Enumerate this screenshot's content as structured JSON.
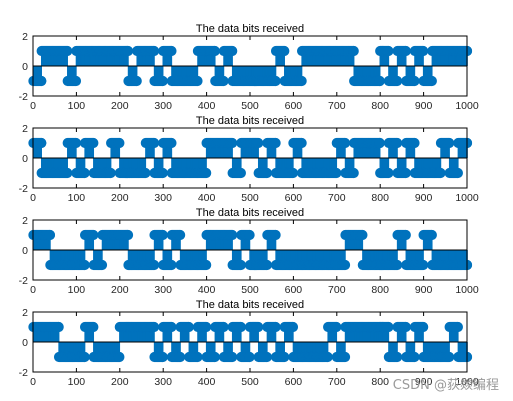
{
  "watermark": "CSDN @荻燚编程",
  "style": {
    "stem_color": "#0072BD",
    "axis_color": "#000000",
    "background": "#ffffff"
  },
  "chart_data": [
    {
      "type": "stem",
      "title": "The data bits received",
      "xlim": [
        0,
        1000
      ],
      "ylim": [
        -2,
        2
      ],
      "xticks": [
        0,
        100,
        200,
        300,
        400,
        500,
        600,
        700,
        800,
        900,
        1000
      ],
      "yticks": [
        -2,
        0,
        2
      ],
      "segments": [
        {
          "x": [
            1,
            19
          ],
          "y": -1
        },
        {
          "x": [
            20,
            79
          ],
          "y": 1
        },
        {
          "x": [
            80,
            99
          ],
          "y": -1
        },
        {
          "x": [
            100,
            219
          ],
          "y": 1
        },
        {
          "x": [
            220,
            239
          ],
          "y": -1
        },
        {
          "x": [
            240,
            279
          ],
          "y": 1
        },
        {
          "x": [
            280,
            299
          ],
          "y": -1
        },
        {
          "x": [
            300,
            319
          ],
          "y": 1
        },
        {
          "x": [
            320,
            379
          ],
          "y": -1
        },
        {
          "x": [
            380,
            419
          ],
          "y": 1
        },
        {
          "x": [
            420,
            439
          ],
          "y": -1
        },
        {
          "x": [
            440,
            459
          ],
          "y": 1
        },
        {
          "x": [
            460,
            559
          ],
          "y": -1
        },
        {
          "x": [
            560,
            579
          ],
          "y": 1
        },
        {
          "x": [
            580,
            619
          ],
          "y": -1
        },
        {
          "x": [
            620,
            739
          ],
          "y": 1
        },
        {
          "x": [
            740,
            799
          ],
          "y": -1
        },
        {
          "x": [
            800,
            819
          ],
          "y": 1
        },
        {
          "x": [
            820,
            839
          ],
          "y": -1
        },
        {
          "x": [
            840,
            859
          ],
          "y": 1
        },
        {
          "x": [
            860,
            879
          ],
          "y": -1
        },
        {
          "x": [
            880,
            899
          ],
          "y": 1
        },
        {
          "x": [
            900,
            919
          ],
          "y": -1
        },
        {
          "x": [
            920,
            1000
          ],
          "y": 1
        }
      ]
    },
    {
      "type": "stem",
      "title": "The data bits received",
      "xlim": [
        0,
        1000
      ],
      "ylim": [
        -2,
        2
      ],
      "xticks": [
        0,
        100,
        200,
        300,
        400,
        500,
        600,
        700,
        800,
        900,
        1000
      ],
      "yticks": [
        -2,
        0,
        2
      ],
      "segments": [
        {
          "x": [
            1,
            19
          ],
          "y": 1
        },
        {
          "x": [
            20,
            79
          ],
          "y": -1
        },
        {
          "x": [
            80,
            99
          ],
          "y": 1
        },
        {
          "x": [
            100,
            119
          ],
          "y": -1
        },
        {
          "x": [
            120,
            139
          ],
          "y": 1
        },
        {
          "x": [
            140,
            179
          ],
          "y": -1
        },
        {
          "x": [
            180,
            199
          ],
          "y": 1
        },
        {
          "x": [
            200,
            259
          ],
          "y": -1
        },
        {
          "x": [
            260,
            279
          ],
          "y": 1
        },
        {
          "x": [
            280,
            299
          ],
          "y": -1
        },
        {
          "x": [
            300,
            319
          ],
          "y": 1
        },
        {
          "x": [
            320,
            399
          ],
          "y": -1
        },
        {
          "x": [
            400,
            459
          ],
          "y": 1
        },
        {
          "x": [
            460,
            479
          ],
          "y": -1
        },
        {
          "x": [
            480,
            519
          ],
          "y": 1
        },
        {
          "x": [
            520,
            539
          ],
          "y": -1
        },
        {
          "x": [
            540,
            559
          ],
          "y": 1
        },
        {
          "x": [
            560,
            599
          ],
          "y": -1
        },
        {
          "x": [
            600,
            619
          ],
          "y": 1
        },
        {
          "x": [
            620,
            699
          ],
          "y": -1
        },
        {
          "x": [
            700,
            719
          ],
          "y": 1
        },
        {
          "x": [
            720,
            739
          ],
          "y": -1
        },
        {
          "x": [
            740,
            799
          ],
          "y": 1
        },
        {
          "x": [
            800,
            819
          ],
          "y": -1
        },
        {
          "x": [
            820,
            839
          ],
          "y": 1
        },
        {
          "x": [
            840,
            859
          ],
          "y": -1
        },
        {
          "x": [
            860,
            879
          ],
          "y": 1
        },
        {
          "x": [
            880,
            939
          ],
          "y": -1
        },
        {
          "x": [
            940,
            959
          ],
          "y": 1
        },
        {
          "x": [
            960,
            979
          ],
          "y": -1
        },
        {
          "x": [
            980,
            1000
          ],
          "y": 1
        }
      ]
    },
    {
      "type": "stem",
      "title": "The data bits received",
      "xlim": [
        0,
        1000
      ],
      "ylim": [
        -2,
        2
      ],
      "xticks": [
        0,
        100,
        200,
        300,
        400,
        500,
        600,
        700,
        800,
        900,
        1000
      ],
      "yticks": [
        -2,
        0,
        2
      ],
      "segments": [
        {
          "x": [
            1,
            39
          ],
          "y": 1
        },
        {
          "x": [
            40,
            119
          ],
          "y": -1
        },
        {
          "x": [
            120,
            139
          ],
          "y": 1
        },
        {
          "x": [
            140,
            159
          ],
          "y": -1
        },
        {
          "x": [
            160,
            219
          ],
          "y": 1
        },
        {
          "x": [
            220,
            279
          ],
          "y": -1
        },
        {
          "x": [
            280,
            299
          ],
          "y": 1
        },
        {
          "x": [
            300,
            319
          ],
          "y": -1
        },
        {
          "x": [
            320,
            339
          ],
          "y": 1
        },
        {
          "x": [
            340,
            399
          ],
          "y": -1
        },
        {
          "x": [
            400,
            459
          ],
          "y": 1
        },
        {
          "x": [
            460,
            479
          ],
          "y": -1
        },
        {
          "x": [
            480,
            499
          ],
          "y": 1
        },
        {
          "x": [
            500,
            539
          ],
          "y": -1
        },
        {
          "x": [
            540,
            559
          ],
          "y": 1
        },
        {
          "x": [
            560,
            719
          ],
          "y": -1
        },
        {
          "x": [
            720,
            759
          ],
          "y": 1
        },
        {
          "x": [
            760,
            839
          ],
          "y": -1
        },
        {
          "x": [
            840,
            859
          ],
          "y": 1
        },
        {
          "x": [
            860,
            899
          ],
          "y": -1
        },
        {
          "x": [
            900,
            919
          ],
          "y": 1
        },
        {
          "x": [
            920,
            1000
          ],
          "y": -1
        }
      ]
    },
    {
      "type": "stem",
      "title": "The data bits received",
      "xlim": [
        0,
        1000
      ],
      "ylim": [
        -2,
        2
      ],
      "xticks": [
        0,
        100,
        200,
        300,
        400,
        500,
        600,
        700,
        800,
        900,
        1000
      ],
      "yticks": [
        -2,
        0,
        2
      ],
      "segments": [
        {
          "x": [
            1,
            59
          ],
          "y": 1
        },
        {
          "x": [
            60,
            119
          ],
          "y": -1
        },
        {
          "x": [
            120,
            139
          ],
          "y": 1
        },
        {
          "x": [
            140,
            199
          ],
          "y": -1
        },
        {
          "x": [
            200,
            279
          ],
          "y": 1
        },
        {
          "x": [
            280,
            299
          ],
          "y": -1
        },
        {
          "x": [
            300,
            319
          ],
          "y": 1
        },
        {
          "x": [
            320,
            339
          ],
          "y": -1
        },
        {
          "x": [
            340,
            359
          ],
          "y": 1
        },
        {
          "x": [
            360,
            379
          ],
          "y": -1
        },
        {
          "x": [
            380,
            399
          ],
          "y": 1
        },
        {
          "x": [
            400,
            419
          ],
          "y": -1
        },
        {
          "x": [
            420,
            439
          ],
          "y": 1
        },
        {
          "x": [
            440,
            459
          ],
          "y": -1
        },
        {
          "x": [
            460,
            479
          ],
          "y": 1
        },
        {
          "x": [
            480,
            499
          ],
          "y": -1
        },
        {
          "x": [
            500,
            519
          ],
          "y": 1
        },
        {
          "x": [
            520,
            539
          ],
          "y": -1
        },
        {
          "x": [
            540,
            559
          ],
          "y": 1
        },
        {
          "x": [
            560,
            579
          ],
          "y": -1
        },
        {
          "x": [
            580,
            599
          ],
          "y": 1
        },
        {
          "x": [
            600,
            679
          ],
          "y": -1
        },
        {
          "x": [
            680,
            699
          ],
          "y": 1
        },
        {
          "x": [
            700,
            719
          ],
          "y": -1
        },
        {
          "x": [
            720,
            819
          ],
          "y": 1
        },
        {
          "x": [
            820,
            839
          ],
          "y": -1
        },
        {
          "x": [
            840,
            859
          ],
          "y": 1
        },
        {
          "x": [
            860,
            879
          ],
          "y": -1
        },
        {
          "x": [
            880,
            899
          ],
          "y": 1
        },
        {
          "x": [
            900,
            959
          ],
          "y": -1
        },
        {
          "x": [
            960,
            979
          ],
          "y": 1
        },
        {
          "x": [
            980,
            1000
          ],
          "y": -1
        }
      ]
    }
  ]
}
